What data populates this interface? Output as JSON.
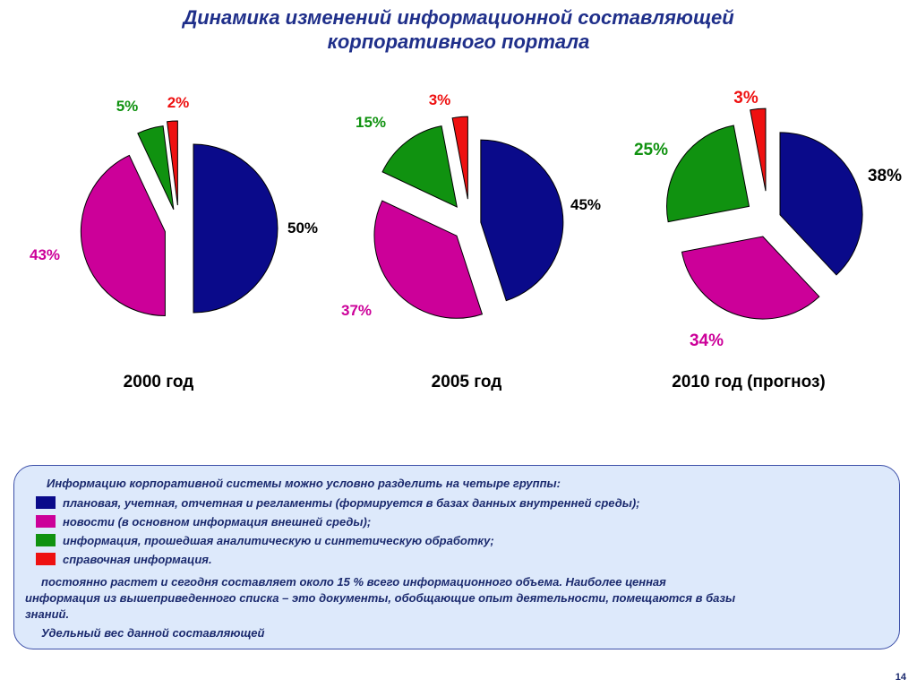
{
  "title": {
    "line1": "Динамика изменений информационной составляющей",
    "line2": "корпоративного портала"
  },
  "colors": {
    "planned": "#0a0a8a",
    "news": "#cc0099",
    "analytic": "#109210",
    "reference": "#ee1111"
  },
  "chart_data": [
    {
      "type": "pie",
      "title": "2000 год",
      "categories": [
        "plannovaya",
        "novosti",
        "analiticheskaya",
        "spravochnaya"
      ],
      "values": [
        50,
        43,
        5,
        2
      ],
      "labels": [
        "50%",
        "43%",
        "5%",
        "2%"
      ]
    },
    {
      "type": "pie",
      "title": "2005 год",
      "categories": [
        "plannovaya",
        "novosti",
        "analiticheskaya",
        "spravochnaya"
      ],
      "values": [
        45,
        37,
        15,
        3
      ],
      "labels": [
        "45%",
        "37%",
        "15%",
        "3%"
      ]
    },
    {
      "type": "pie",
      "title": "2010 год (прогноз)",
      "categories": [
        "plannovaya",
        "novosti",
        "analiticheskaya",
        "spravochnaya"
      ],
      "values": [
        38,
        34,
        25,
        3
      ],
      "labels": [
        "38%",
        "34%",
        "25%",
        "3%"
      ]
    }
  ],
  "info": {
    "intro": "Информацию корпоративной системы можно условно разделить на четыре группы:",
    "legend": [
      "плановая, учетная, отчетная и регламенты (формируется в базах данных внутренней среды);",
      "новости  (в основном информация внешней среды);",
      "информация, прошедшая аналитическую и синтетическую обработку;",
      "справочная информация."
    ],
    "para_line1": "постоянно растет и сегодня составляет около 15 % всего информационного объема. Наиболее ценная",
    "para_line2": "информация из вышеприведенного списка – это документы, обобщающие опыт деятельности, помещаются в базы",
    "para_line3": "знаний.",
    "last_line": "Удельный вес данной составляющей"
  },
  "page_number": "14"
}
